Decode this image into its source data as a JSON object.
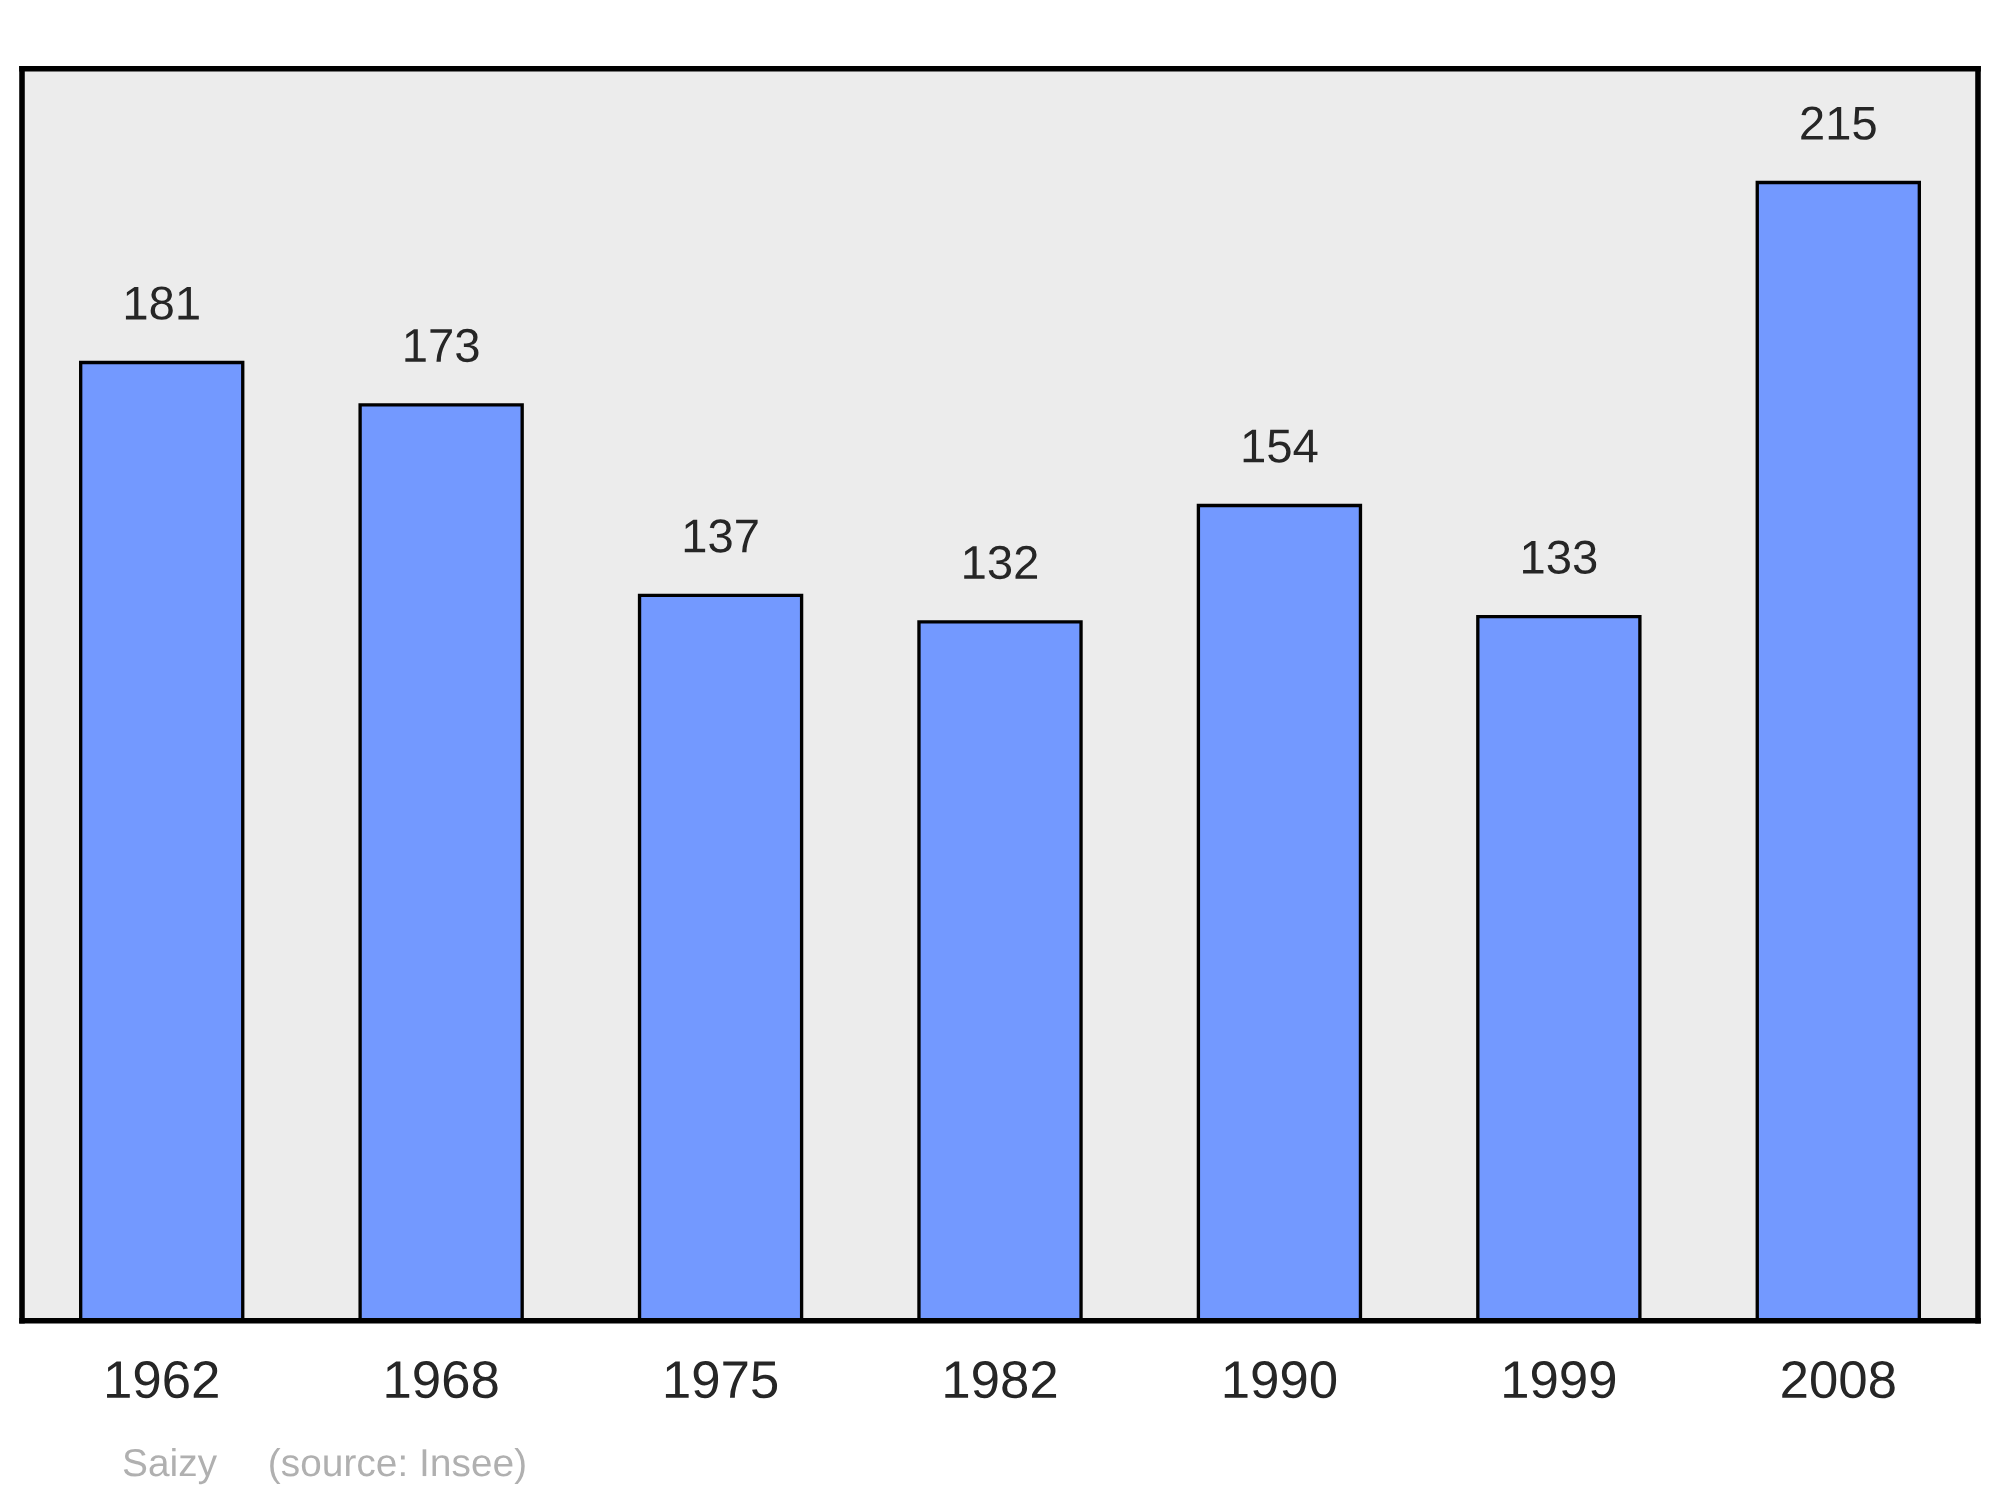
{
  "chart_data": {
    "type": "bar",
    "categories": [
      "1962",
      "1968",
      "1975",
      "1982",
      "1990",
      "1999",
      "2008"
    ],
    "values": [
      181,
      173,
      137,
      132,
      154,
      133,
      215
    ],
    "color": "#7399ff",
    "data_labels": true,
    "grid": false,
    "annotations": [
      "Saizy",
      "(source: Insee)"
    ]
  }
}
